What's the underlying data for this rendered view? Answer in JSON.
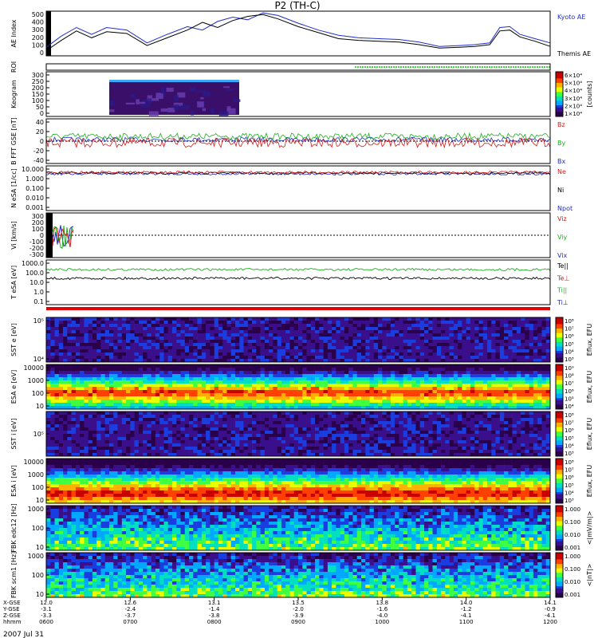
{
  "title": "P2 (TH-C)",
  "date_label": "2007 Jul 31",
  "chart_data": {
    "type": "multi-panel space physics summary plot",
    "time_axis": {
      "rows": [
        {
          "label": "X-GSE",
          "values": [
            "12.0",
            "12.6",
            "13.1",
            "13.5",
            "13.8",
            "14.0",
            "14.1"
          ]
        },
        {
          "label": "Y-GSE",
          "values": [
            "-3.1",
            "-2.4",
            "-1.4",
            "-2.0",
            "-1.6",
            "-1.2",
            "-0.9"
          ]
        },
        {
          "label": "Z-GSE",
          "values": [
            "-3.3",
            "-3.7",
            "-3.8",
            "-3.9",
            "-4.0",
            "-4.1",
            "-4.1"
          ]
        },
        {
          "label": "hhmm",
          "values": [
            "0600",
            "0700",
            "0800",
            "0900",
            "1000",
            "1100",
            "1200"
          ]
        }
      ]
    },
    "panels": [
      {
        "id": "ae",
        "ylabel": "AE Index",
        "yticks": [
          "500",
          "400",
          "300",
          "200",
          "100",
          "0"
        ],
        "legend": [
          {
            "label": "Kyoto AE",
            "color": "#1f2fc8"
          },
          {
            "label": "Themis AE",
            "color": "#000000"
          }
        ],
        "series": [
          {
            "name": "Kyoto AE",
            "color": "#1f2fc8",
            "x": [
              0,
              0.03,
              0.06,
              0.09,
              0.12,
              0.16,
              0.2,
              0.24,
              0.28,
              0.31,
              0.34,
              0.37,
              0.4,
              0.43,
              0.46,
              0.5,
              0.54,
              0.58,
              0.62,
              0.66,
              0.7,
              0.74,
              0.78,
              0.82,
              0.85,
              0.88,
              0.9,
              0.92,
              0.94,
              0.97,
              1.0
            ],
            "y": [
              100,
              230,
              330,
              250,
              330,
              300,
              150,
              250,
              340,
              300,
              400,
              450,
              420,
              500,
              470,
              380,
              300,
              240,
              210,
              200,
              190,
              160,
              110,
              120,
              130,
              150,
              330,
              340,
              250,
              200,
              150
            ]
          },
          {
            "name": "Themis AE",
            "color": "#000000",
            "x": [
              0,
              0.03,
              0.06,
              0.09,
              0.12,
              0.16,
              0.2,
              0.24,
              0.28,
              0.31,
              0.34,
              0.37,
              0.4,
              0.43,
              0.46,
              0.5,
              0.54,
              0.58,
              0.62,
              0.66,
              0.7,
              0.74,
              0.78,
              0.82,
              0.85,
              0.88,
              0.9,
              0.92,
              0.94,
              0.97,
              1.0
            ],
            "y": [
              60,
              180,
              290,
              210,
              280,
              260,
              120,
              210,
              300,
              390,
              330,
              410,
              460,
              480,
              430,
              340,
              270,
              200,
              180,
              170,
              160,
              130,
              90,
              100,
              110,
              130,
              290,
              300,
              220,
              170,
              110
            ]
          }
        ]
      },
      {
        "id": "roi",
        "ylabel": "ROI",
        "yticks": []
      },
      {
        "id": "keogram",
        "ylabel": "Keogram",
        "yticks": [
          "300",
          "250",
          "200",
          "150",
          "100",
          "50",
          "0"
        ],
        "colorbar": {
          "label": "[counts]",
          "ticks": [
            "6×10⁴",
            "5×10⁴",
            "4×10⁴",
            "3×10⁴",
            "2×10⁴",
            "1×10⁴"
          ]
        }
      },
      {
        "id": "bfield",
        "ylabel": "B FFT GSE [nT]",
        "yticks": [
          "40",
          "20",
          "0",
          "-20",
          "-40"
        ],
        "legend": [
          {
            "label": "Bz",
            "color": "#d21a1a"
          },
          {
            "label": "By",
            "color": "#19b019"
          },
          {
            "label": "Bx",
            "color": "#1f2fc8"
          }
        ]
      },
      {
        "id": "density",
        "ylabel": "N eSA [1/cc]",
        "yticks": [
          "10.000",
          "1.000",
          "0.100",
          "0.010",
          "0.001"
        ],
        "legend": [
          {
            "label": "Ne",
            "color": "#d21a1a"
          },
          {
            "label": "Ni",
            "color": "#000000"
          },
          {
            "label": "Npot",
            "color": "#1f2fc8"
          }
        ]
      },
      {
        "id": "velocity",
        "ylabel": "Vi [km/s]",
        "yticks": [
          "300",
          "200",
          "100",
          "0",
          "-100",
          "-200",
          "-300"
        ],
        "legend": [
          {
            "label": "Viz",
            "color": "#d21a1a"
          },
          {
            "label": "Viy",
            "color": "#19b019"
          },
          {
            "label": "Vix",
            "color": "#1f2fc8"
          }
        ]
      },
      {
        "id": "temperature",
        "ylabel": "T eSA [eV]",
        "yticks": [
          "1000.0",
          "100.0",
          "10.0",
          "1.0",
          "0.1"
        ],
        "legend": [
          {
            "label": "Te||",
            "color": "#000000"
          },
          {
            "label": "Te⊥",
            "color": "#d21a1a"
          },
          {
            "label": "Ti||",
            "color": "#19b019"
          },
          {
            "label": "Ti⊥",
            "color": "#1f2fc8"
          }
        ]
      },
      {
        "id": "sst_e",
        "ylabel": "SST e [eV]",
        "yticks": [
          "10⁵",
          "10⁴"
        ],
        "colorbar": {
          "label": "Eflux, EFU",
          "ticks": [
            "10⁸",
            "10⁷",
            "10⁶",
            "10⁵",
            "10⁴",
            "10³"
          ]
        }
      },
      {
        "id": "esa_e",
        "ylabel": "ESA e [eV]",
        "yticks": [
          "10000",
          "1000",
          "100",
          "10"
        ],
        "colorbar": {
          "label": "Eflux, EFU",
          "ticks": [
            "10⁹",
            "10⁸",
            "10⁷",
            "10⁶",
            "10⁵",
            "10⁴"
          ]
        }
      },
      {
        "id": "sst_i",
        "ylabel": "SST i [eV]",
        "yticks": [
          "10⁵"
        ],
        "colorbar": {
          "label": "Eflux, EFU",
          "ticks": [
            "10⁸",
            "10⁷",
            "10⁶",
            "10⁵",
            "10⁴",
            "10³"
          ]
        }
      },
      {
        "id": "esa_i",
        "ylabel": "ESA i [eV]",
        "yticks": [
          "10000",
          "1000",
          "100",
          "10"
        ],
        "colorbar": {
          "label": "Eflux, EFU",
          "ticks": [
            "10⁸",
            "10⁷",
            "10⁶",
            "10⁵",
            "10⁴",
            "10³"
          ]
        }
      },
      {
        "id": "fbk_e",
        "ylabel": "FBK edc12 [Hz]",
        "yticks": [
          "1000",
          "100",
          "10"
        ],
        "colorbar": {
          "label": "<|mV/m|>",
          "ticks": [
            "1.000",
            "0.100",
            "0.010",
            "0.001"
          ]
        }
      },
      {
        "id": "fbk_b",
        "ylabel": "FBK scm1 [Hz]",
        "yticks": [
          "1000",
          "100",
          "10"
        ],
        "colorbar": {
          "label": "<|nT|>",
          "ticks": [
            "1.000",
            "0.100",
            "0.010",
            "0.001"
          ]
        }
      }
    ]
  }
}
